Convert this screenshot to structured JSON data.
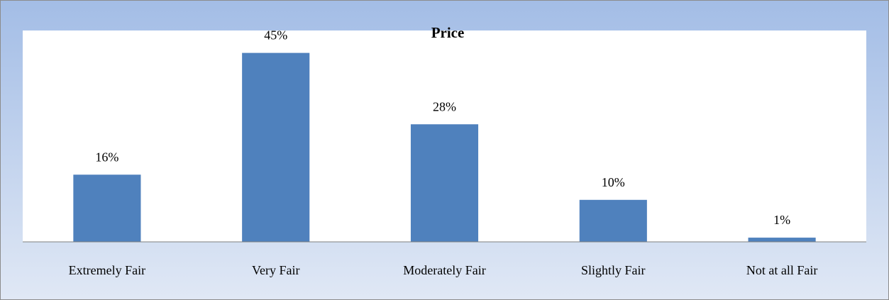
{
  "chart_data": {
    "type": "bar",
    "title": "Price",
    "categories": [
      "Extremely Fair",
      "Very Fair",
      "Moderately Fair",
      "Slightly Fair",
      "Not at all Fair"
    ],
    "values": [
      16,
      45,
      28,
      10,
      1
    ],
    "value_labels": [
      "16%",
      "45%",
      "28%",
      "10%",
      "1%"
    ],
    "color": "#4f81bd",
    "ylim": [
      0,
      50
    ]
  }
}
